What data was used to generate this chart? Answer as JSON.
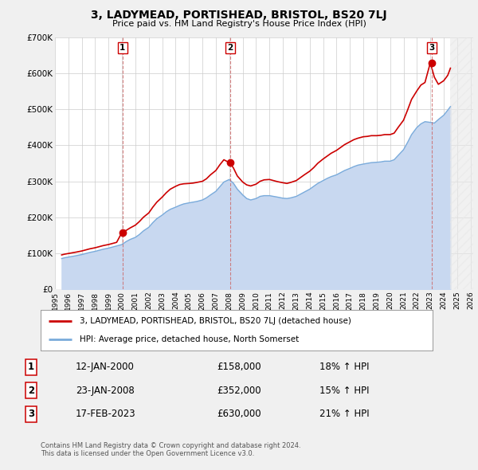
{
  "title": "3, LADYMEAD, PORTISHEAD, BRISTOL, BS20 7LJ",
  "subtitle": "Price paid vs. HM Land Registry's House Price Index (HPI)",
  "background_color": "#f0f0f0",
  "plot_bg_color": "#ffffff",
  "hpi_fill_color": "#c8d8f0",
  "hpi_line_color": "#7aabdb",
  "price_line_color": "#cc0000",
  "sale_dot_color": "#cc0000",
  "ylim": [
    0,
    700000
  ],
  "yticks": [
    0,
    100000,
    200000,
    300000,
    400000,
    500000,
    600000,
    700000
  ],
  "ytick_labels": [
    "£0",
    "£100K",
    "£200K",
    "£300K",
    "£400K",
    "£500K",
    "£600K",
    "£700K"
  ],
  "xlim_start": 1995.3,
  "xlim_end": 2026.2,
  "sale_dates": [
    2000.04,
    2008.07,
    2023.13
  ],
  "sale_prices": [
    158000,
    352000,
    630000
  ],
  "sale_labels": [
    "1",
    "2",
    "3"
  ],
  "legend_label_price": "3, LADYMEAD, PORTISHEAD, BRISTOL, BS20 7LJ (detached house)",
  "legend_label_hpi": "HPI: Average price, detached house, North Somerset",
  "table_rows": [
    {
      "num": "1",
      "date": "12-JAN-2000",
      "price": "£158,000",
      "hpi": "18% ↑ HPI"
    },
    {
      "num": "2",
      "date": "23-JAN-2008",
      "price": "£352,000",
      "hpi": "15% ↑ HPI"
    },
    {
      "num": "3",
      "date": "17-FEB-2023",
      "price": "£630,000",
      "hpi": "21% ↑ HPI"
    }
  ],
  "footnote1": "Contains HM Land Registry data © Crown copyright and database right 2024.",
  "footnote2": "This data is licensed under the Open Government Licence v3.0.",
  "hpi_data_x": [
    1995.5,
    1995.7,
    1996.0,
    1996.3,
    1996.6,
    1997.0,
    1997.3,
    1997.6,
    1998.0,
    1998.3,
    1998.6,
    1999.0,
    1999.3,
    1999.6,
    2000.0,
    2000.3,
    2000.6,
    2001.0,
    2001.3,
    2001.6,
    2002.0,
    2002.3,
    2002.6,
    2003.0,
    2003.3,
    2003.6,
    2004.0,
    2004.3,
    2004.6,
    2005.0,
    2005.3,
    2005.6,
    2006.0,
    2006.3,
    2006.6,
    2007.0,
    2007.3,
    2007.6,
    2008.0,
    2008.3,
    2008.6,
    2009.0,
    2009.3,
    2009.6,
    2010.0,
    2010.3,
    2010.6,
    2011.0,
    2011.3,
    2011.6,
    2012.0,
    2012.3,
    2012.6,
    2013.0,
    2013.3,
    2013.6,
    2014.0,
    2014.3,
    2014.6,
    2015.0,
    2015.3,
    2015.6,
    2016.0,
    2016.3,
    2016.6,
    2017.0,
    2017.3,
    2017.6,
    2018.0,
    2018.3,
    2018.6,
    2019.0,
    2019.3,
    2019.6,
    2020.0,
    2020.3,
    2020.6,
    2021.0,
    2021.3,
    2021.6,
    2022.0,
    2022.3,
    2022.6,
    2023.0,
    2023.3,
    2023.6,
    2024.0,
    2024.3,
    2024.5
  ],
  "hpi_data_y": [
    85000,
    87000,
    89000,
    91000,
    93000,
    96000,
    99000,
    102000,
    105000,
    108000,
    111000,
    114000,
    117000,
    120000,
    124000,
    132000,
    138000,
    144000,
    152000,
    162000,
    172000,
    185000,
    196000,
    206000,
    215000,
    222000,
    228000,
    233000,
    237000,
    240000,
    242000,
    244000,
    248000,
    254000,
    262000,
    272000,
    285000,
    298000,
    305000,
    295000,
    278000,
    262000,
    252000,
    248000,
    252000,
    258000,
    260000,
    260000,
    258000,
    256000,
    253000,
    252000,
    254000,
    258000,
    264000,
    270000,
    278000,
    286000,
    294000,
    302000,
    308000,
    313000,
    318000,
    324000,
    330000,
    336000,
    341000,
    345000,
    348000,
    350000,
    352000,
    353000,
    354000,
    356000,
    356000,
    360000,
    372000,
    388000,
    408000,
    430000,
    450000,
    460000,
    466000,
    464000,
    462000,
    472000,
    484000,
    498000,
    508000
  ],
  "price_data_x": [
    1995.5,
    1995.7,
    1996.0,
    1996.3,
    1996.6,
    1997.0,
    1997.3,
    1997.6,
    1998.0,
    1998.3,
    1998.6,
    1999.0,
    1999.3,
    1999.6,
    2000.0,
    2000.3,
    2000.6,
    2001.0,
    2001.3,
    2001.6,
    2002.0,
    2002.3,
    2002.6,
    2003.0,
    2003.3,
    2003.6,
    2004.0,
    2004.3,
    2004.6,
    2005.0,
    2005.3,
    2005.6,
    2006.0,
    2006.3,
    2006.6,
    2007.0,
    2007.3,
    2007.6,
    2008.0,
    2008.3,
    2008.6,
    2009.0,
    2009.3,
    2009.6,
    2010.0,
    2010.3,
    2010.6,
    2011.0,
    2011.3,
    2011.6,
    2012.0,
    2012.3,
    2012.6,
    2013.0,
    2013.3,
    2013.6,
    2014.0,
    2014.3,
    2014.6,
    2015.0,
    2015.3,
    2015.6,
    2016.0,
    2016.3,
    2016.6,
    2017.0,
    2017.3,
    2017.6,
    2018.0,
    2018.3,
    2018.6,
    2019.0,
    2019.3,
    2019.6,
    2020.0,
    2020.3,
    2020.6,
    2021.0,
    2021.3,
    2021.6,
    2022.0,
    2022.3,
    2022.6,
    2023.0,
    2023.3,
    2023.6,
    2024.0,
    2024.3,
    2024.5
  ],
  "price_data_y": [
    95000,
    97000,
    99000,
    101000,
    103000,
    106000,
    109000,
    112000,
    115000,
    118000,
    121000,
    124000,
    127000,
    130000,
    158000,
    163000,
    170000,
    178000,
    188000,
    200000,
    212000,
    228000,
    242000,
    256000,
    268000,
    278000,
    286000,
    291000,
    293000,
    294000,
    295000,
    297000,
    300000,
    307000,
    318000,
    330000,
    346000,
    360000,
    352000,
    338000,
    315000,
    298000,
    290000,
    287000,
    292000,
    300000,
    304000,
    305000,
    302000,
    299000,
    296000,
    294000,
    297000,
    302000,
    310000,
    318000,
    328000,
    338000,
    350000,
    362000,
    370000,
    378000,
    386000,
    394000,
    402000,
    410000,
    416000,
    420000,
    424000,
    425000,
    427000,
    427000,
    428000,
    430000,
    430000,
    434000,
    450000,
    470000,
    498000,
    528000,
    552000,
    568000,
    575000,
    630000,
    590000,
    570000,
    580000,
    595000,
    615000
  ]
}
